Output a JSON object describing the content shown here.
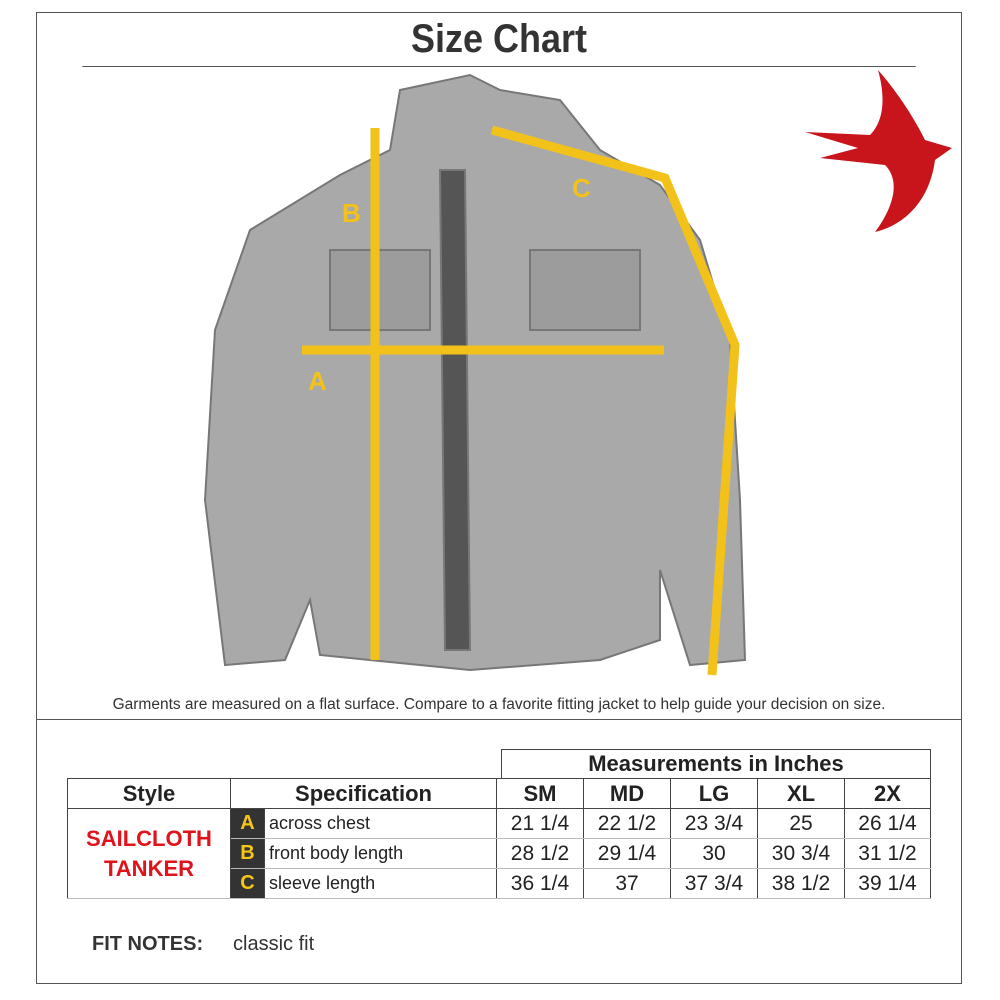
{
  "title": "Size Chart",
  "caption": "Garments are measured on a flat surface. Compare to a favorite fitting jacket to help guide your decision on size.",
  "diagram_labels": {
    "a": "A",
    "b": "B",
    "c": "C"
  },
  "colors": {
    "measure_line": "#f2c21b",
    "bird": "#c8141b",
    "style_text": "#e0121a"
  },
  "table": {
    "group_header": "Measurements in Inches",
    "headers": {
      "style": "Style",
      "specification": "Specification",
      "sizes": [
        "SM",
        "MD",
        "LG",
        "XL",
        "2X"
      ]
    },
    "style_line1": "SAILCLOTH",
    "style_line2": "TANKER",
    "rows": [
      {
        "letter": "A",
        "spec": "across chest",
        "values": [
          "21 1/4",
          "22 1/2",
          "23 3/4",
          "25",
          "26 1/4"
        ]
      },
      {
        "letter": "B",
        "spec": "front body length",
        "values": [
          "28 1/2",
          "29 1/4",
          "30",
          "30 3/4",
          "31 1/2"
        ]
      },
      {
        "letter": "C",
        "spec": "sleeve length",
        "values": [
          "36 1/4",
          "37",
          "37 3/4",
          "38 1/2",
          "39 1/4"
        ]
      }
    ]
  },
  "fit_notes": {
    "label": "FIT NOTES:",
    "value": "classic fit"
  }
}
